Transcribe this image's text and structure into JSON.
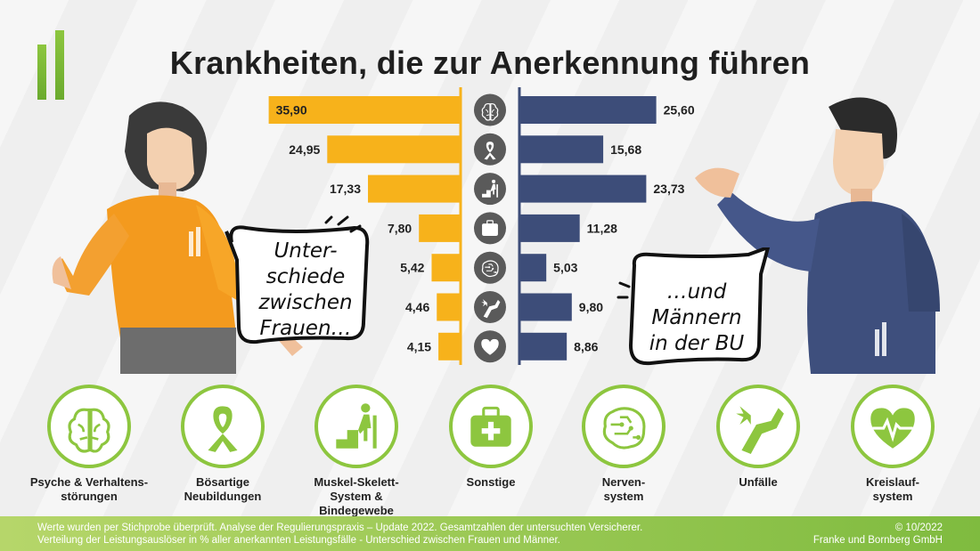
{
  "title": "Krankheiten, die zur Anerkennung führen",
  "bubbles": {
    "women": [
      "Unter-",
      "schiede",
      "zwischen",
      "Frauen…"
    ],
    "men": [
      "…und",
      "Männern",
      "in der BU"
    ]
  },
  "chart_data": {
    "type": "bar",
    "title": "Krankheiten, die zur Anerkennung führen",
    "xlabel": "",
    "ylabel": "",
    "unit": "% aller anerkannten Leistungsfälle",
    "categories": [
      "Psyche & Verhaltensstörungen",
      "Bösartige Neubildungen",
      "Muskel-Skelett-System & Bindegewebe",
      "Sonstige",
      "Nervensystem",
      "Unfälle",
      "Kreislaufsystem"
    ],
    "series": [
      {
        "name": "Frauen",
        "color": "#f7b21b",
        "values": [
          35.9,
          24.95,
          17.33,
          7.8,
          5.42,
          4.46,
          4.15
        ],
        "labels": [
          "35,90",
          "24,95",
          "17,33",
          "7,80",
          "5,42",
          "4,46",
          "4,15"
        ]
      },
      {
        "name": "Männer",
        "color": "#3d4d79",
        "values": [
          25.6,
          15.68,
          23.73,
          11.28,
          5.03,
          9.8,
          8.86
        ],
        "labels": [
          "25,60",
          "15,68",
          "23,73",
          "11,28",
          "5,03",
          "9,80",
          "8,86"
        ]
      }
    ],
    "xlim": [
      0,
      36
    ]
  },
  "categories": [
    {
      "label": "Psyche & Verhaltens-\nstörungen",
      "icon": "brain-icon"
    },
    {
      "label": "Bösartige\nNeubildungen",
      "icon": "ribbon-icon"
    },
    {
      "label": "Muskel-Skelett-\nSystem & Bindegewebe",
      "icon": "stairs-icon"
    },
    {
      "label": "Sonstige",
      "icon": "first-aid-kit-icon"
    },
    {
      "label": "Nerven-\nsystem",
      "icon": "circuit-brain-icon"
    },
    {
      "label": "Unfälle",
      "icon": "broken-arm-icon"
    },
    {
      "label": "Kreislauf-\nsystem",
      "icon": "heart-pulse-icon"
    }
  ],
  "footer": {
    "line1": "Werte wurden per Stichprobe überprüft. Analyse der Regulierungspraxis – Update 2022. Gesamtzahlen der untersuchten Versicherer.",
    "line2": "Verteilung der Leistungsauslöser in % aller anerkannten Leistungsfälle - Unterschied zwischen Frauen und Männer.",
    "date": "© 10/2022",
    "company": "Franke und Bornberg GmbH"
  }
}
